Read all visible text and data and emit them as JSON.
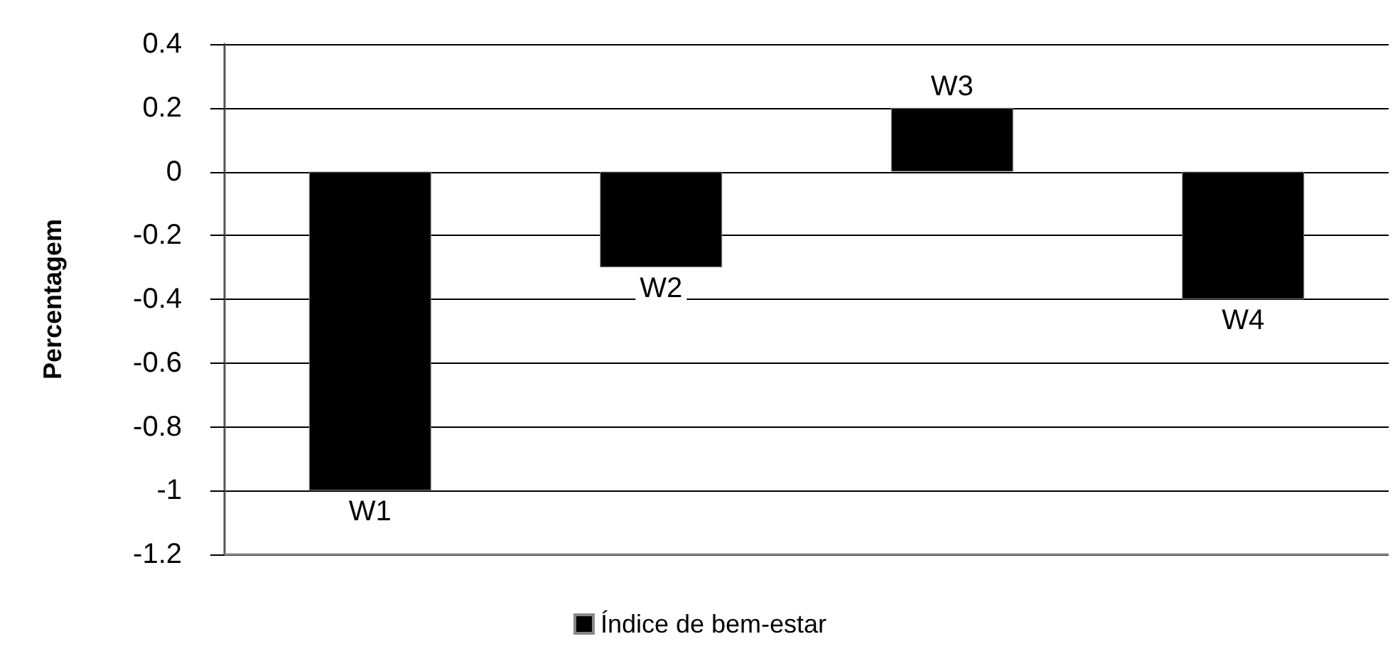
{
  "chart_data": {
    "type": "bar",
    "ylabel": "Percentagem",
    "categories": [
      "W1",
      "W2",
      "W3",
      "W4"
    ],
    "series": [
      {
        "name": "Índice de bem-estar",
        "color": "#000000",
        "values": [
          -1,
          -0.3,
          0.2,
          -0.4
        ]
      }
    ],
    "ylim": [
      -1.2,
      0.4
    ],
    "yticks": [
      -1.2,
      -1,
      -0.8,
      -0.6,
      -0.4,
      -0.2,
      0,
      0.2,
      0.4
    ],
    "grid": "y",
    "legend": "bottom",
    "tick_labels": "y"
  }
}
